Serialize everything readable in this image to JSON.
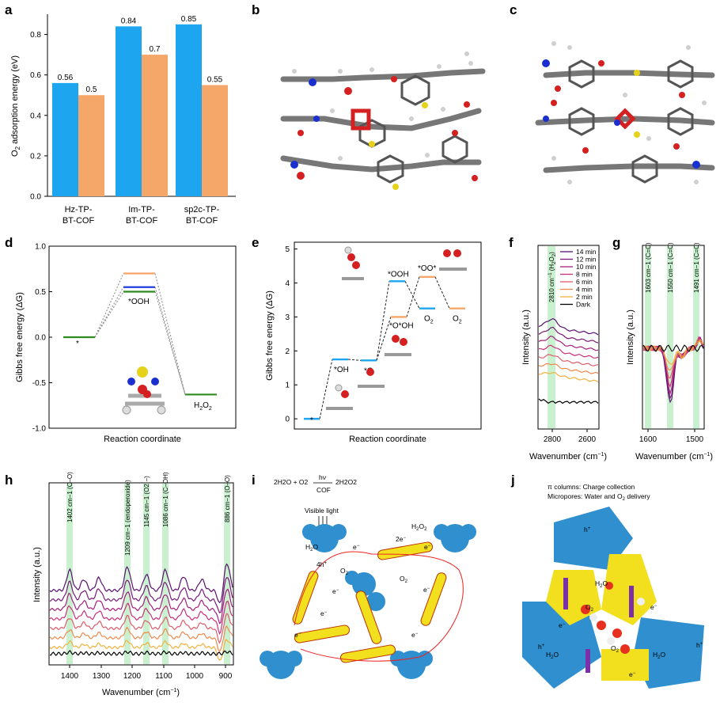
{
  "panel_labels": {
    "a": "a",
    "b": "b",
    "c": "c",
    "d": "d",
    "e": "e",
    "f": "f",
    "g": "g",
    "h": "h",
    "i": "i",
    "j": "j"
  },
  "chart_data": [
    {
      "id": "a",
      "type": "bar",
      "ylabel": "O2 adsorption energy (eV)",
      "ylim": [
        0,
        0.9
      ],
      "yticks": [
        "0.0",
        "0.2",
        "0.4",
        "0.6",
        "0.8"
      ],
      "categories": [
        [
          "Hz-TP-",
          "BT-COF"
        ],
        [
          "Im-TP-",
          "BT-COF"
        ],
        [
          "sp2c-TP-",
          "BT-COF"
        ]
      ],
      "series": [
        {
          "values": [
            0.56,
            0.84,
            0.85
          ],
          "labels": [
            "0.56",
            "0.84",
            "0.85"
          ],
          "color": "#1ea5ef"
        },
        {
          "values": [
            0.5,
            0.7,
            0.55
          ],
          "labels": [
            "0.5",
            "0.7",
            "0.55"
          ],
          "color": "#f5a76a"
        }
      ]
    },
    {
      "id": "d",
      "type": "line",
      "ylabel": "Gibbs free energy (ΔG)",
      "xlabel": "Reaction coordinate",
      "ylim": [
        -1.0,
        1.0
      ],
      "yticks": [
        "1.0",
        "0.5",
        "0.0",
        "-0.5",
        "-1.0"
      ],
      "levels": [
        {
          "state": "*",
          "value": 0.0
        },
        {
          "state": "*OOH",
          "values": [
            0.7,
            0.55,
            0.5
          ],
          "colors": [
            "#f5a76a",
            "#1f3fe0",
            "#2e8b1f"
          ]
        },
        {
          "state": "H2O2",
          "value": -0.63
        }
      ],
      "labels": {
        "start": "*",
        "mid": "*OOH",
        "end": "H2O2"
      }
    },
    {
      "id": "e",
      "type": "line",
      "ylabel": "Gibbs free energy (ΔG)",
      "xlabel": "Reaction coordinate",
      "ylim": [
        -0.3,
        5.2
      ],
      "yticks": [
        "0",
        "1",
        "2",
        "3",
        "4",
        "5"
      ],
      "path_blue": [
        {
          "label": "*",
          "value": 0.0
        },
        {
          "label": "*OH",
          "value": 1.75
        },
        {
          "label": "*O",
          "value": 1.72
        },
        {
          "label": "*OOH",
          "value": 4.05
        },
        {
          "label": "O2",
          "value": 3.25
        }
      ],
      "path_orange": [
        {
          "label": "*O*OH",
          "value": 3.0
        },
        {
          "label": "*OO*",
          "value": 4.18
        },
        {
          "label": "O2",
          "value": 3.25
        }
      ],
      "colors": {
        "blue": "#1ea5ef",
        "orange": "#f5a76a"
      }
    },
    {
      "id": "f",
      "type": "line",
      "ylabel": "Intensity (a.u.)",
      "xlabel": "Wavenumber (cm−1)",
      "xticks": [
        "2800",
        "2600"
      ],
      "band_label": "2810 cm−1 (H2O2)",
      "legend": [
        "14 min",
        "12 min",
        "10 min",
        "8 min",
        "6 min",
        "4 min",
        "2 min",
        "Dark"
      ],
      "colors": [
        "#5a1170",
        "#7a1a7a",
        "#a51f7e",
        "#c8307a",
        "#df5e6a",
        "#ec8a4e",
        "#f3b13e",
        "#000000"
      ]
    },
    {
      "id": "g",
      "type": "line",
      "ylabel": "Intensity (a.u.)",
      "xlabel": "Wavenumber (cm−1)",
      "xticks": [
        "1600",
        "1500"
      ],
      "band_labels": [
        "1603 cm−1 (C=C)",
        "1550 cm−1 (C=C)",
        "1491 cm−1 (C=C)"
      ]
    },
    {
      "id": "h",
      "type": "line",
      "ylabel": "Intensity (a.u.)",
      "xlabel": "Wavenumber (cm−1)",
      "xticks": [
        "1400",
        "1300",
        "1200",
        "1100",
        "1000",
        "900"
      ],
      "band_labels": [
        "1402 cm−1 (C–O)",
        "1209 cm−1 (endoperoxide)",
        "1145 cm−1 (O2·−)",
        "1086 cm−1 (C–OH)",
        "886 cm−1 (O–O)"
      ]
    }
  ],
  "panel_i": {
    "equation": {
      "left": "2H2O + O2",
      "over": "hν",
      "under": "COF",
      "right": "2H2O2"
    },
    "light": "Visible light",
    "labels": {
      "h2o": "H2O",
      "holes": "4h+",
      "o2": "O2",
      "e2": "2e−",
      "o2b": "O2",
      "h2o2": "H2O2",
      "e": "e−"
    }
  },
  "panel_j": {
    "line1": "π columns: Charge collection",
    "line2": "Micropores: Water and O2 delivery",
    "labels": {
      "h2o": "H2O",
      "e": "e−",
      "o2": "O2",
      "hplus": "h+"
    }
  }
}
